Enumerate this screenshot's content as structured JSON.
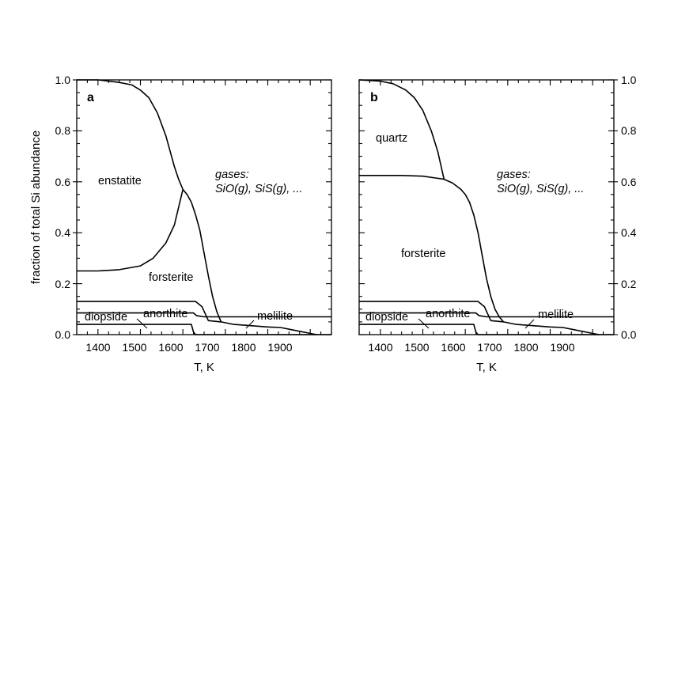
{
  "chart_data": [
    {
      "type": "area",
      "panel": "a",
      "xlabel": "T, K",
      "ylabel": "fraction of total Si abundance",
      "xlim": [
        1350,
        1950
      ],
      "ylim": [
        0.0,
        1.0
      ],
      "xticks": [
        1400,
        1500,
        1600,
        1700,
        1800,
        1900
      ],
      "yticks": [
        "0.0",
        "0.2",
        "0.4",
        "0.6",
        "0.8",
        "1.0"
      ],
      "series": [
        {
          "name": "diopside",
          "x": [
            1350,
            1620,
            1625,
            1630,
            1950
          ],
          "y": [
            0.04,
            0.04,
            0.01,
            0.0,
            0.0
          ]
        },
        {
          "name": "anorthite",
          "x": [
            1350,
            1625,
            1632,
            1650,
            1950
          ],
          "y": [
            0.085,
            0.085,
            0.075,
            0.07,
            0.07
          ]
        },
        {
          "name": "melilite",
          "x": [
            1350,
            1620,
            1630,
            1645,
            1660,
            1690,
            1720,
            1760,
            1800,
            1830,
            1860,
            1890,
            1905,
            1915
          ],
          "y": [
            0.13,
            0.13,
            0.13,
            0.11,
            0.055,
            0.05,
            0.04,
            0.035,
            0.03,
            0.028,
            0.018,
            0.008,
            0.003,
            0.0
          ]
        },
        {
          "name": "forsterite",
          "x": [
            1350,
            1400,
            1450,
            1500,
            1530,
            1560,
            1580,
            1590,
            1600,
            1610,
            1620,
            1630,
            1640,
            1650,
            1660,
            1670,
            1680,
            1690
          ],
          "y": [
            0.25,
            0.25,
            0.255,
            0.27,
            0.3,
            0.36,
            0.43,
            0.5,
            0.57,
            0.55,
            0.52,
            0.47,
            0.41,
            0.32,
            0.23,
            0.15,
            0.09,
            0.05
          ]
        },
        {
          "name": "enstatite",
          "x": [
            1350,
            1400,
            1450,
            1480,
            1500,
            1520,
            1540,
            1560,
            1580,
            1590,
            1600
          ],
          "y": [
            1.0,
            1.0,
            0.99,
            0.98,
            0.96,
            0.93,
            0.87,
            0.78,
            0.66,
            0.61,
            0.57
          ]
        }
      ],
      "labels": [
        "enstatite",
        "forsterite",
        "diopside",
        "anorthite",
        "melilite"
      ],
      "gas_label_lines": [
        "gases:",
        "SiO(g), SiS(g), ..."
      ]
    },
    {
      "type": "area",
      "panel": "b",
      "xlabel": "T, K",
      "ylabel": "",
      "xlim": [
        1350,
        1950
      ],
      "ylim": [
        0.0,
        1.0
      ],
      "xticks": [
        1400,
        1500,
        1600,
        1700,
        1800,
        1900
      ],
      "yticks": [
        "0.0",
        "0.2",
        "0.4",
        "0.6",
        "0.8",
        "1.0"
      ],
      "series": [
        {
          "name": "diopside",
          "x": [
            1350,
            1620,
            1625,
            1630,
            1950
          ],
          "y": [
            0.04,
            0.04,
            0.01,
            0.0,
            0.0
          ]
        },
        {
          "name": "anorthite",
          "x": [
            1350,
            1625,
            1632,
            1650,
            1950
          ],
          "y": [
            0.085,
            0.085,
            0.075,
            0.07,
            0.07
          ]
        },
        {
          "name": "melilite",
          "x": [
            1350,
            1620,
            1630,
            1645,
            1660,
            1690,
            1720,
            1760,
            1800,
            1830,
            1860,
            1890,
            1905,
            1915
          ],
          "y": [
            0.13,
            0.13,
            0.13,
            0.11,
            0.055,
            0.05,
            0.04,
            0.035,
            0.03,
            0.028,
            0.018,
            0.008,
            0.003,
            0.0
          ]
        },
        {
          "name": "forsterite",
          "x": [
            1350,
            1400,
            1450,
            1500,
            1530,
            1550,
            1570,
            1590,
            1600,
            1610,
            1620,
            1630,
            1640,
            1650,
            1660,
            1670,
            1680,
            1690
          ],
          "y": [
            0.625,
            0.625,
            0.625,
            0.622,
            0.615,
            0.61,
            0.595,
            0.57,
            0.55,
            0.52,
            0.47,
            0.4,
            0.31,
            0.22,
            0.15,
            0.1,
            0.07,
            0.05
          ]
        },
        {
          "name": "quartz",
          "x": [
            1350,
            1400,
            1430,
            1460,
            1480,
            1500,
            1520,
            1535,
            1550
          ],
          "y": [
            1.0,
            0.995,
            0.985,
            0.96,
            0.93,
            0.88,
            0.8,
            0.72,
            0.61
          ]
        }
      ],
      "labels": [
        "quartz",
        "forsterite",
        "diopside",
        "anorthite",
        "melilite"
      ],
      "gas_label_lines": [
        "gases:",
        "SiO(g), SiS(g), ..."
      ]
    }
  ]
}
